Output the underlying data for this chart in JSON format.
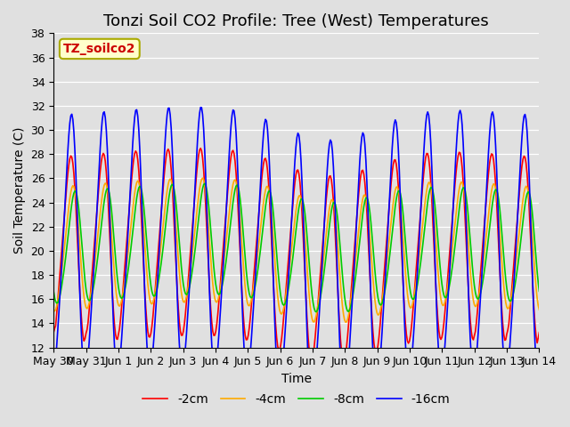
{
  "title": "Tonzi Soil CO2 Profile: Tree (West) Temperatures",
  "xlabel": "Time",
  "ylabel": "Soil Temperature (C)",
  "ylim": [
    12,
    38
  ],
  "yticks": [
    12,
    14,
    16,
    18,
    20,
    22,
    24,
    26,
    28,
    30,
    32,
    34,
    36,
    38
  ],
  "legend_label": "TZ_soilco2",
  "series_labels": [
    "-2cm",
    "-4cm",
    "-8cm",
    "-16cm"
  ],
  "series_colors": [
    "#ff0000",
    "#ffaa00",
    "#00cc00",
    "#0000ff"
  ],
  "background_color": "#e0e0e0",
  "title_fontsize": 13,
  "axis_fontsize": 10,
  "tick_fontsize": 9,
  "legend_fontsize": 10,
  "x_tick_labels": [
    "May 30",
    "May 31",
    "Jun 1",
    "Jun 2",
    "Jun 3",
    "Jun 4",
    "Jun 5",
    "Jun 6",
    "Jun 7",
    "Jun 8",
    "Jun 9",
    "Jun 10",
    "Jun 11",
    "Jun 12",
    "Jun 13",
    "Jun 14"
  ],
  "num_points": 480
}
